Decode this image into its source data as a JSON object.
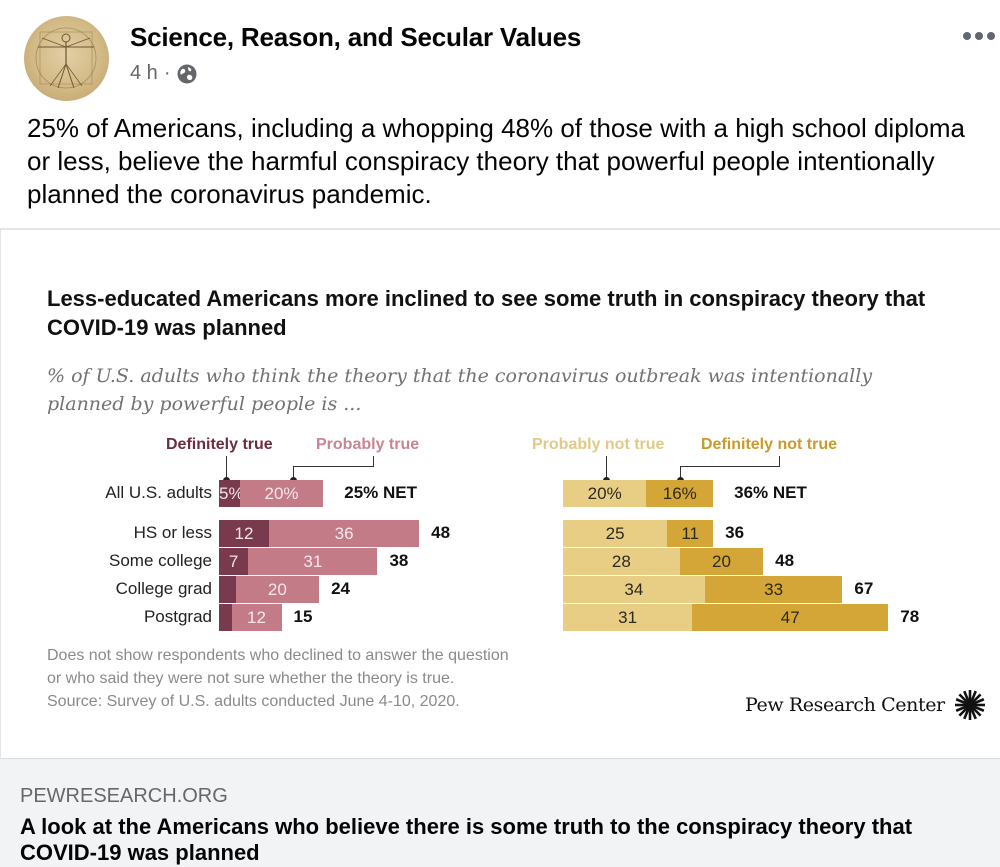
{
  "post": {
    "page_name": "Science, Reason, and Secular Values",
    "time": "4 h",
    "separator": "·",
    "privacy_icon": "globe-icon",
    "more_icon": "ellipsis-icon",
    "text": "25% of Americans, including a whopping 48% of those with a high school diploma or less, believe the harmful conspiracy theory that powerful people intentionally planned the coronavirus pandemic."
  },
  "link": {
    "domain": "PEWRESEARCH.ORG",
    "title": "A look at the Americans who believe there is some truth to the conspiracy theory that COVID-19 was planned"
  },
  "colors": {
    "definitely_true": "#7a3a4e",
    "probably_true": "#c27b87",
    "probably_not_true": "#e8cd85",
    "definitely_not_true": "#d4a637",
    "legend_definitely_true": "#6b2d40",
    "legend_probably_true": "#c98592",
    "legend_probably_not_true": "#e2c985",
    "legend_definitely_not_true": "#c99a2c"
  },
  "chart_data": {
    "type": "bar",
    "orientation": "horizontal-stacked",
    "title": "Less-educated Americans more inclined to see some truth in conspiracy theory that COVID-19 was planned",
    "subtitle": "% of U.S. adults who think the theory that the coronavirus outbreak was intentionally planned by powerful people is ...",
    "categories": [
      "All U.S. adults",
      "HS or less",
      "Some college",
      "College grad",
      "Postgrad"
    ],
    "groups": [
      {
        "name": "true",
        "series": [
          {
            "name": "Definitely true",
            "values": [
              5,
              12,
              7,
              4,
              3
            ],
            "labels": [
              "5%",
              "12",
              "7",
              "",
              ""
            ]
          },
          {
            "name": "Probably true",
            "values": [
              20,
              36,
              31,
              20,
              12
            ],
            "labels": [
              "20%",
              "36",
              "31",
              "20",
              "12"
            ]
          }
        ],
        "net": [
          25,
          48,
          38,
          24,
          15
        ],
        "net_labels": [
          "25% NET",
          "48",
          "38",
          "24",
          "15"
        ]
      },
      {
        "name": "not true",
        "series": [
          {
            "name": "Probably not true",
            "values": [
              20,
              25,
              28,
              34,
              31
            ],
            "labels": [
              "20%",
              "25",
              "28",
              "34",
              "31"
            ]
          },
          {
            "name": "Definitely not true",
            "values": [
              16,
              11,
              20,
              33,
              47
            ],
            "labels": [
              "16%",
              "11",
              "20",
              "33",
              "47"
            ]
          }
        ],
        "net": [
          36,
          36,
          48,
          67,
          78
        ],
        "net_labels": [
          "36% NET",
          "36",
          "48",
          "67",
          "78"
        ]
      }
    ],
    "note": [
      "Does not show respondents who declined to answer the question",
      "or who said they were not sure whether the theory is true.",
      "Source: Survey of U.S. adults conducted June 4-10, 2020."
    ],
    "source_logo": "Pew Research Center"
  }
}
